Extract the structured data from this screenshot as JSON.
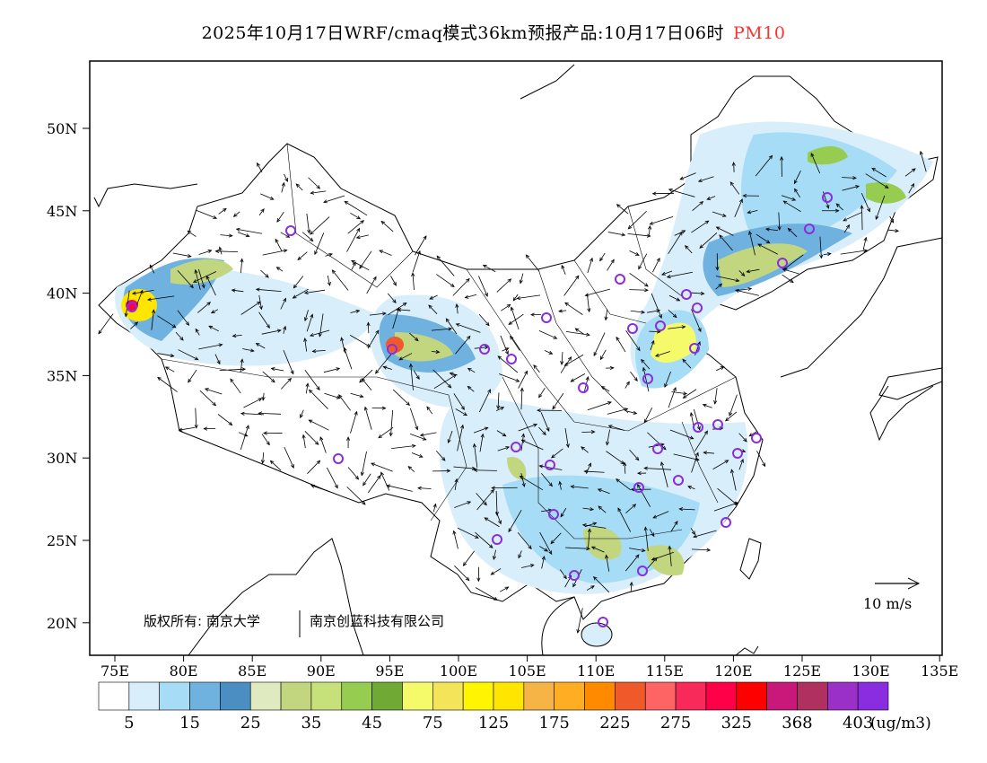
{
  "title": {
    "main": "2025年10月17日WRF/cmaq模式36km预报产品:10月17日06时",
    "variable": "PM10",
    "variable_color": "#ff3030"
  },
  "axes": {
    "lat_labels": [
      "50N",
      "45N",
      "40N",
      "35N",
      "30N",
      "25N",
      "20N"
    ],
    "lon_labels": [
      "75E",
      "80E",
      "85E",
      "90E",
      "95E",
      "100E",
      "105E",
      "110E",
      "115E",
      "120E",
      "125E",
      "130E",
      "135E"
    ]
  },
  "copyright": {
    "left": "版权所有: 南京大学",
    "right": "南京创蓝科技有限公司"
  },
  "wind_reference": {
    "label": "10 m/s",
    "speed": 10
  },
  "colorbar": {
    "unit": "(ug/m3)",
    "tick_labels": [
      "5",
      "15",
      "25",
      "35",
      "45",
      "75",
      "125",
      "175",
      "225",
      "275",
      "325",
      "368",
      "403"
    ],
    "colors": [
      "#ffffff",
      "#d8eefa",
      "#a6dcf5",
      "#6fb2e0",
      "#4a8ec2",
      "#e0eac0",
      "#c2d680",
      "#c6e07a",
      "#96cc50",
      "#70aa34",
      "#f4fa6a",
      "#f4e45a",
      "#fff500",
      "#ffe600",
      "#f6b446",
      "#ffad22",
      "#ff8a00",
      "#f05a2a",
      "#ff6464",
      "#f82a5a",
      "#ff0048",
      "#ff0000",
      "#c8187a",
      "#b03060",
      "#9a30c8",
      "#8a2ce0"
    ]
  }
}
